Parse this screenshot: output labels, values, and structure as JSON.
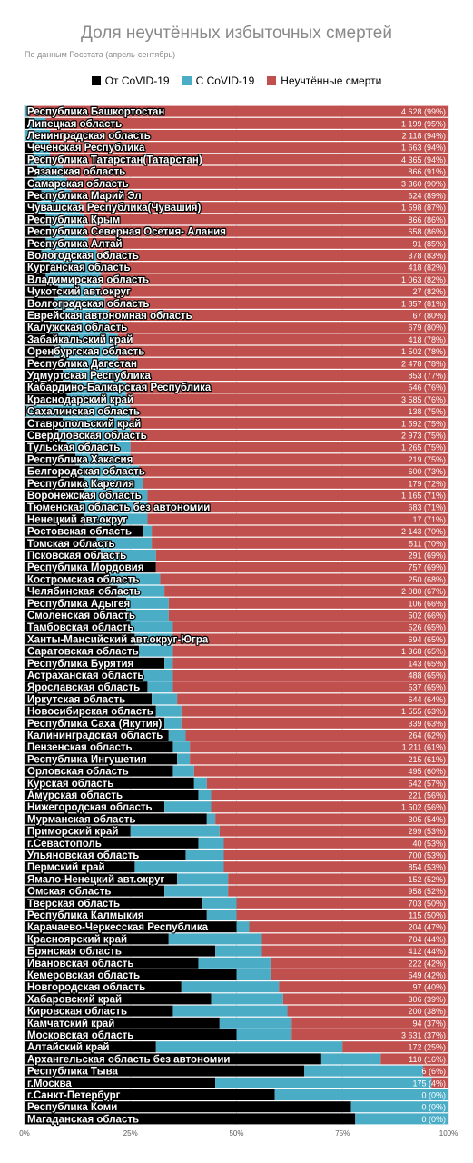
{
  "chart_data": {
    "type": "bar",
    "orientation": "horizontal",
    "stacked": true,
    "normalized": true,
    "title": "Доля неучтённых избыточных смертей",
    "subtitle": "По данным Росстата (апрель-сентябрь)",
    "xlim": [
      0,
      100
    ],
    "x_ticks": [
      "0%",
      "25%",
      "50%",
      "75%",
      "100%"
    ],
    "grid": true,
    "legend_position": "top",
    "series": [
      {
        "name": "От CoVID-19",
        "color": "#000000"
      },
      {
        "name": "С CoVID-19",
        "color": "#4bacc6"
      },
      {
        "name": "Неучтённые смерти",
        "color": "#c0504d"
      }
    ],
    "rows": [
      {
        "label": "Республика Башкортостан",
        "from": 0,
        "with": 1,
        "value": "4 628 (99%)"
      },
      {
        "label": "Липецкая область",
        "from": 1,
        "with": 4,
        "value": "1 199 (95%)"
      },
      {
        "label": "Ленинградская область",
        "from": 0,
        "with": 6,
        "value": "2 118 (94%)"
      },
      {
        "label": "Чеченская Республика",
        "from": 2,
        "with": 4,
        "value": "1 663 (94%)"
      },
      {
        "label": "Республика Татарстан(Татарстан)",
        "from": 1,
        "with": 5,
        "value": "4 365 (94%)"
      },
      {
        "label": "Рязанская область",
        "from": 3,
        "with": 6,
        "value": "866 (91%)"
      },
      {
        "label": "Самарская область",
        "from": 2,
        "with": 8,
        "value": "3 360 (90%)"
      },
      {
        "label": "Республика Марий Эл",
        "from": 4,
        "with": 7,
        "value": "624 (89%)"
      },
      {
        "label": "Чувашская Республика(Чувашия)",
        "from": 3,
        "with": 10,
        "value": "1 598 (87%)"
      },
      {
        "label": "Республика Крым",
        "from": 5,
        "with": 9,
        "value": "866 (86%)"
      },
      {
        "label": "Республика Северная Осетия- Алания",
        "from": 6,
        "with": 8,
        "value": "658 (86%)"
      },
      {
        "label": "Республика Алтай",
        "from": 5,
        "with": 10,
        "value": "91 (85%)"
      },
      {
        "label": "Вологодская область",
        "from": 4,
        "with": 13,
        "value": "378 (83%)"
      },
      {
        "label": "Курганская область",
        "from": 6,
        "with": 12,
        "value": "418 (82%)"
      },
      {
        "label": "Владимирская область",
        "from": 5,
        "with": 13,
        "value": "1 063 (82%)"
      },
      {
        "label": "Чукотский авт.округ",
        "from": 8,
        "with": 10,
        "value": "27 (82%)"
      },
      {
        "label": "Волгоградская область",
        "from": 7,
        "with": 12,
        "value": "1 857 (81%)"
      },
      {
        "label": "Еврейская автономная область",
        "from": 9,
        "with": 11,
        "value": "67 (80%)"
      },
      {
        "label": "Калужская область",
        "from": 6,
        "with": 14,
        "value": "679 (80%)"
      },
      {
        "label": "Забайкальский край",
        "from": 8,
        "with": 14,
        "value": "418 (78%)"
      },
      {
        "label": "Оренбургская область",
        "from": 7,
        "with": 15,
        "value": "1 502 (78%)"
      },
      {
        "label": "Республика Дагестан",
        "from": 10,
        "with": 12,
        "value": "2 478 (78%)"
      },
      {
        "label": "Удмуртская Республика",
        "from": 9,
        "with": 14,
        "value": "853 (77%)"
      },
      {
        "label": "Кабардино-Балкарская Республика",
        "from": 11,
        "with": 13,
        "value": "546 (76%)"
      },
      {
        "label": "Краснодарский край",
        "from": 10,
        "with": 14,
        "value": "3 585 (76%)"
      },
      {
        "label": "Сахалинская область",
        "from": 0.5,
        "with": 24.5,
        "value": "138 (75%)"
      },
      {
        "label": "Ставропольский край",
        "from": 9,
        "with": 16,
        "value": "1 592 (75%)"
      },
      {
        "label": "Свердловская область",
        "from": 8,
        "with": 17,
        "value": "2 973 (75%)"
      },
      {
        "label": "Тульская область",
        "from": 10,
        "with": 15,
        "value": "1 265 (75%)"
      },
      {
        "label": "Республика Хакасия",
        "from": 12,
        "with": 13,
        "value": "219 (75%)"
      },
      {
        "label": "Белгородская область",
        "from": 13,
        "with": 14,
        "value": "600 (73%)"
      },
      {
        "label": "Республика Карелия",
        "from": 14,
        "with": 14,
        "value": "179 (72%)"
      },
      {
        "label": "Воронежская область",
        "from": 14,
        "with": 15,
        "value": "1 165 (71%)"
      },
      {
        "label": "Тюменская область без автономии",
        "from": 13,
        "with": 16,
        "value": "683 (71%)"
      },
      {
        "label": "Ненецкий авт.округ",
        "from": 14,
        "with": 15,
        "value": "17 (71%)"
      },
      {
        "label": "Ростовская область",
        "from": 28,
        "with": 2,
        "value": "2 143 (70%)"
      },
      {
        "label": "Томская область",
        "from": 17,
        "with": 13,
        "value": "511 (70%)"
      },
      {
        "label": "Псковская область",
        "from": 18,
        "with": 13,
        "value": "291 (69%)"
      },
      {
        "label": "Республика Мордовия",
        "from": 31,
        "with": 0,
        "value": "757 (69%)"
      },
      {
        "label": "Костромская область",
        "from": 20,
        "with": 12,
        "value": "250 (68%)"
      },
      {
        "label": "Челябинская область",
        "from": 22,
        "with": 11,
        "value": "2 080 (67%)"
      },
      {
        "label": "Республика Адыгея",
        "from": 24,
        "with": 10,
        "value": "106 (66%)"
      },
      {
        "label": "Смоленская область",
        "from": 24,
        "with": 10,
        "value": "502 (66%)"
      },
      {
        "label": "Тамбовская область",
        "from": 25,
        "with": 10,
        "value": "526 (65%)"
      },
      {
        "label": "Ханты-Мансийский авт.округ-Югра",
        "from": 26,
        "with": 9,
        "value": "694 (65%)"
      },
      {
        "label": "Саратовская область",
        "from": 27,
        "with": 8,
        "value": "1 368 (65%)"
      },
      {
        "label": "Республика Бурятия",
        "from": 33,
        "with": 2,
        "value": "143 (65%)"
      },
      {
        "label": "Астраханская область",
        "from": 28,
        "with": 7,
        "value": "488 (65%)"
      },
      {
        "label": "Ярославская область",
        "from": 29,
        "with": 6,
        "value": "537 (65%)"
      },
      {
        "label": "Иркутская область",
        "from": 30,
        "with": 6,
        "value": "644 (64%)"
      },
      {
        "label": "Новосибирская область",
        "from": 31,
        "with": 6,
        "value": "1 555 (63%)"
      },
      {
        "label": "Республика Саха (Якутия)",
        "from": 33,
        "with": 4,
        "value": "339 (63%)"
      },
      {
        "label": "Калининградская область",
        "from": 34,
        "with": 4,
        "value": "264 (62%)"
      },
      {
        "label": "Пензенская область",
        "from": 35,
        "with": 4,
        "value": "1 211 (61%)"
      },
      {
        "label": "Республика Ингушетия",
        "from": 36,
        "with": 3,
        "value": "215 (61%)"
      },
      {
        "label": "Орловская область",
        "from": 35,
        "with": 5,
        "value": "495 (60%)"
      },
      {
        "label": "Курская область",
        "from": 40,
        "with": 3,
        "value": "542 (57%)"
      },
      {
        "label": "Амурская область",
        "from": 41,
        "with": 3,
        "value": "221 (56%)"
      },
      {
        "label": "Нижегородская область",
        "from": 33,
        "with": 11,
        "value": "1 502 (56%)"
      },
      {
        "label": "Мурманская область",
        "from": 43,
        "with": 2,
        "value": "305 (54%)"
      },
      {
        "label": "Приморский край",
        "from": 25,
        "with": 21,
        "value": "299 (53%)"
      },
      {
        "label": "г.Севастополь",
        "from": 41,
        "with": 6,
        "value": "40 (53%)"
      },
      {
        "label": "Ульяновская область",
        "from": 38,
        "with": 9,
        "value": "700 (53%)"
      },
      {
        "label": "Пермский край",
        "from": 26,
        "with": 21,
        "value": "854 (53%)"
      },
      {
        "label": "Ямало-Ненецкий авт.округ",
        "from": 36,
        "with": 12,
        "value": "152 (52%)"
      },
      {
        "label": "Омская область",
        "from": 33,
        "with": 15,
        "value": "958 (52%)"
      },
      {
        "label": "Тверская область",
        "from": 42,
        "with": 8,
        "value": "703 (50%)"
      },
      {
        "label": "Республика Калмыкия",
        "from": 43,
        "with": 7,
        "value": "115 (50%)"
      },
      {
        "label": "Карачаево-Черкесская Республика",
        "from": 50,
        "with": 3,
        "value": "204 (47%)"
      },
      {
        "label": "Красноярский край",
        "from": 34,
        "with": 22,
        "value": "704 (44%)"
      },
      {
        "label": "Брянская область",
        "from": 45,
        "with": 11,
        "value": "412 (44%)"
      },
      {
        "label": "Ивановская область",
        "from": 41,
        "with": 17,
        "value": "222 (42%)"
      },
      {
        "label": "Кемеровская область",
        "from": 50,
        "with": 8,
        "value": "549 (42%)"
      },
      {
        "label": "Новгородская область",
        "from": 37,
        "with": 23,
        "value": "97 (40%)"
      },
      {
        "label": "Хабаровский край",
        "from": 44,
        "with": 17,
        "value": "306 (39%)"
      },
      {
        "label": "Кировская область",
        "from": 35,
        "with": 27,
        "value": "200 (38%)"
      },
      {
        "label": "Камчатский край",
        "from": 46,
        "with": 17,
        "value": "94 (37%)"
      },
      {
        "label": "Московская область",
        "from": 50,
        "with": 13,
        "value": "3 631 (37%)"
      },
      {
        "label": "Алтайский край",
        "from": 31,
        "with": 44,
        "value": "172 (25%)"
      },
      {
        "label": "Архангельская область без автономии",
        "from": 70,
        "with": 14,
        "value": "110 (16%)"
      },
      {
        "label": "Республика Тыва",
        "from": 66,
        "with": 28,
        "value": "6 (6%)"
      },
      {
        "label": "г.Москва",
        "from": 45,
        "with": 51,
        "value": "175 (4%)"
      },
      {
        "label": "г.Санкт-Петербург",
        "from": 59,
        "with": 41,
        "value": "0 (0%)"
      },
      {
        "label": "Республика Коми",
        "from": 77,
        "with": 23,
        "value": "0 (0%)"
      },
      {
        "label": "Магаданская область",
        "from": 78,
        "with": 22,
        "value": "0 (0%)"
      }
    ]
  }
}
